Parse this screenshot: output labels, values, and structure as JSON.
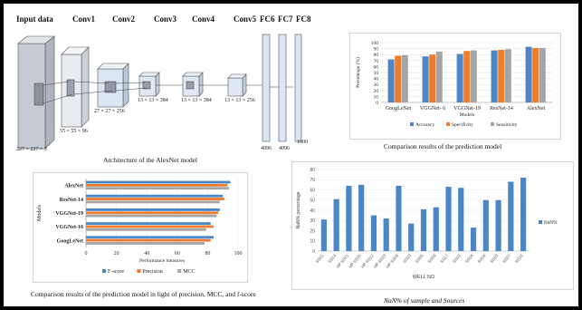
{
  "alexnet": {
    "layers": [
      "Input data",
      "Conv1",
      "Conv2",
      "Conv3",
      "Conv4",
      "Conv5",
      "FC6",
      "FC7",
      "FC8"
    ],
    "dims": [
      "227 × 227 × 3",
      "55 × 55 × 96",
      "27 × 27 × 256",
      "13 × 13 × 384",
      "13 × 13 × 384",
      "13 × 13 × 256",
      "4096",
      "4096",
      "1000"
    ],
    "caption": "Architecture of the AlexNet model"
  },
  "colors": {
    "blue": "#4a86c8",
    "orange": "#ec7d31",
    "gray": "#a5a5a5",
    "face": "#c7ccd4",
    "box": "#dfe9f5"
  },
  "chart_data": [
    {
      "type": "bar",
      "categories": [
        "GoogLeNet",
        "VGGNet- 6",
        "VGGNet-19",
        "ResNet-14",
        "AlexNet"
      ],
      "series": [
        {
          "name": "Accuracy",
          "values": [
            72,
            77,
            81,
            87,
            93
          ]
        },
        {
          "name": "Specificity",
          "values": [
            78,
            80,
            86,
            88,
            91
          ]
        },
        {
          "name": "Sensitivity",
          "values": [
            79,
            85,
            87,
            89,
            91
          ]
        }
      ],
      "ylabel": "Percentage (%)",
      "xlabel": "Models",
      "ylim": [
        0,
        100
      ],
      "yticks": [
        "0",
        "10",
        "20",
        "30",
        "40",
        "50",
        "60",
        "70",
        "80",
        "90",
        "100"
      ],
      "legend": "bottom",
      "caption": "Comparison results of the prediction model"
    },
    {
      "type": "bar",
      "orientation": "horizontal",
      "categories": [
        "AlexNet",
        "ResNet-14",
        "VGGNet-19",
        "VGGNet-16",
        "GoogLeNet"
      ],
      "series": [
        {
          "name": "F-score",
          "values": [
            95,
            90,
            88,
            82,
            84
          ]
        },
        {
          "name": "Precision",
          "values": [
            93,
            91,
            87,
            84,
            82
          ]
        },
        {
          "name": "MCC",
          "values": [
            94,
            88,
            86,
            79,
            78
          ]
        }
      ],
      "xlabel": "Performance measures",
      "ylabel": "Models",
      "xlim": [
        0,
        100
      ],
      "xticks": [
        "0",
        "20",
        "40",
        "60",
        "80",
        "100"
      ],
      "legend": "bottom",
      "caption": "Comparison results of the prediction model in light of precision, MCC, and f-score"
    },
    {
      "type": "bar",
      "categories": [
        "SS01",
        "SS14",
        "HP SS01",
        "HP SS05",
        "HP SS12",
        "HP SS23",
        "HP SS09",
        "SS03",
        "SS05",
        "SS09",
        "SS17",
        "SS03",
        "SS04",
        "SS04",
        "SS03",
        "SS07",
        "SS16"
      ],
      "values": [
        31,
        51,
        64,
        65,
        35,
        32,
        64,
        27,
        41,
        43,
        63,
        62,
        23,
        50,
        50,
        68,
        72
      ],
      "ylabel": "NaN% percentage",
      "xlabel": "WELL NO",
      "ylim": [
        0,
        80
      ],
      "yticks": [
        "0",
        "10",
        "20",
        "30",
        "40",
        "50",
        "60",
        "70",
        "80"
      ],
      "legend_entries": [
        "NaN%"
      ],
      "legend": "right",
      "caption": "NaN% of sample and Sources"
    }
  ]
}
